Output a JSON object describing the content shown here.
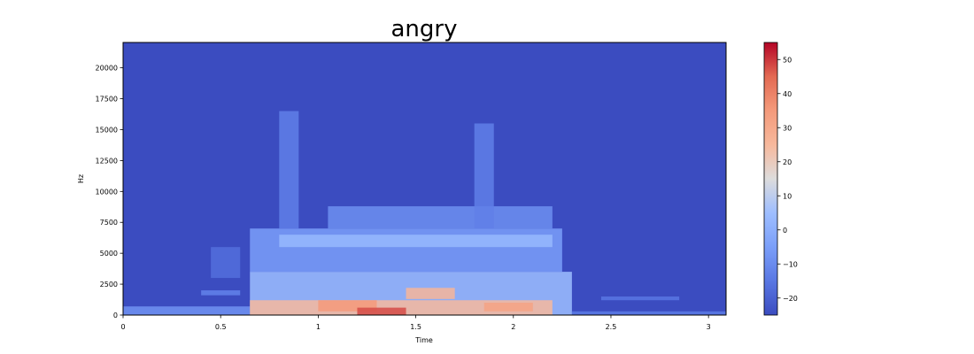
{
  "chart_data": {
    "type": "heatmap",
    "title": "angry",
    "xlabel": "Time",
    "ylabel": "Hz",
    "xlim": [
      0,
      3.09
    ],
    "ylim": [
      0,
      22050
    ],
    "x_ticks": [
      0,
      0.5,
      1,
      1.5,
      2,
      2.5,
      3
    ],
    "x_tick_labels": [
      "0",
      "0.5",
      "1",
      "1.5",
      "2",
      "2.5",
      "3"
    ],
    "y_ticks": [
      0,
      2500,
      5000,
      7500,
      10000,
      12500,
      15000,
      17500,
      20000
    ],
    "y_tick_labels": [
      "0",
      "2500",
      "5000",
      "7500",
      "10000",
      "12500",
      "15000",
      "17500",
      "20000"
    ],
    "colorbar": {
      "colormap": "coolwarm",
      "range": [
        -25,
        55
      ],
      "ticks": [
        -20,
        -10,
        0,
        10,
        20,
        30,
        40,
        50
      ],
      "tick_labels": [
        "−20",
        "−10",
        "0",
        "10",
        "20",
        "30",
        "40",
        "50"
      ]
    },
    "colors": {
      "background_level": "#3b4cc0",
      "max_level": "#b40426"
    },
    "grid": false,
    "energy_regions_db": [
      {
        "t0": 0.0,
        "t1": 0.65,
        "f0": 0,
        "f1": 700,
        "db": -8
      },
      {
        "t0": 0.4,
        "t1": 0.6,
        "f0": 1600,
        "f1": 2000,
        "db": -12
      },
      {
        "t0": 0.45,
        "t1": 0.6,
        "f0": 3000,
        "f1": 5500,
        "db": -17
      },
      {
        "t0": 0.65,
        "t1": 2.3,
        "f0": 0,
        "f1": 3500,
        "db": 5
      },
      {
        "t0": 0.65,
        "t1": 2.25,
        "f0": 3500,
        "f1": 7000,
        "db": -5
      },
      {
        "t0": 0.8,
        "t1": 0.9,
        "f0": 7000,
        "f1": 16500,
        "db": -13
      },
      {
        "t0": 0.8,
        "t1": 2.2,
        "f0": 5500,
        "f1": 6500,
        "db": 3
      },
      {
        "t0": 1.05,
        "t1": 2.2,
        "f0": 7000,
        "f1": 8800,
        "db": -9
      },
      {
        "t0": 0.65,
        "t1": 2.2,
        "f0": 0,
        "f1": 1200,
        "db": 25
      },
      {
        "t0": 1.0,
        "t1": 1.3,
        "f0": 300,
        "f1": 1200,
        "db": 35
      },
      {
        "t0": 1.2,
        "t1": 1.45,
        "f0": 0,
        "f1": 600,
        "db": 48
      },
      {
        "t0": 1.45,
        "t1": 1.7,
        "f0": 1300,
        "f1": 2200,
        "db": 26
      },
      {
        "t0": 1.85,
        "t1": 2.1,
        "f0": 300,
        "f1": 1000,
        "db": 32
      },
      {
        "t0": 1.8,
        "t1": 1.9,
        "f0": 7000,
        "f1": 15500,
        "db": -13
      },
      {
        "t0": 2.3,
        "t1": 3.09,
        "f0": 0,
        "f1": 300,
        "db": -14
      },
      {
        "t0": 2.45,
        "t1": 2.85,
        "f0": 1200,
        "f1": 1500,
        "db": -15
      }
    ]
  }
}
